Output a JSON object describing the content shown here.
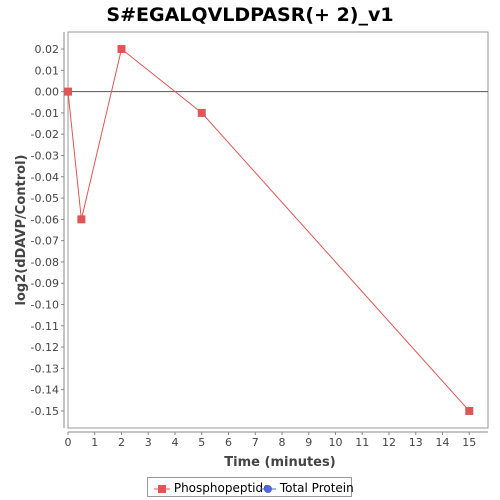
{
  "chart_data": {
    "type": "line",
    "title": "S#EGALQVLDPASR(+ 2)_v1",
    "xlabel": "Time (minutes)",
    "ylabel": "log2(dDAVP/Control)",
    "xlim": [
      0,
      15.7
    ],
    "ylim": [
      -0.158,
      0.028
    ],
    "x_ticks": [
      0,
      1,
      2,
      3,
      4,
      5,
      6,
      7,
      8,
      9,
      10,
      11,
      12,
      13,
      14,
      15
    ],
    "y_ticks": [
      0.02,
      0.01,
      0.0,
      -0.01,
      -0.02,
      -0.03,
      -0.04,
      -0.05,
      -0.06,
      -0.07,
      -0.08,
      -0.09,
      -0.1,
      -0.11,
      -0.12,
      -0.13,
      -0.14,
      -0.15
    ],
    "y_tick_labels": [
      "0.02",
      "0.01",
      "0.00",
      "-0.01",
      "-0.02",
      "-0.03",
      "-0.04",
      "-0.05",
      "-0.06",
      "-0.07",
      "-0.08",
      "-0.09",
      "-0.10",
      "-0.11",
      "-0.12",
      "-0.13",
      "-0.14",
      "-0.15"
    ],
    "zero_line": 0,
    "grid": false,
    "legend_position": "bottom",
    "series": [
      {
        "name": "Phosphopeptide",
        "color": "#e05555",
        "marker": "square",
        "x": [
          0,
          0.5,
          2,
          5,
          15
        ],
        "y": [
          0.0,
          -0.06,
          0.02,
          -0.01,
          -0.15
        ]
      },
      {
        "name": "Total Protein",
        "color": "#5566dd",
        "marker": "circle",
        "x": [],
        "y": []
      }
    ]
  }
}
